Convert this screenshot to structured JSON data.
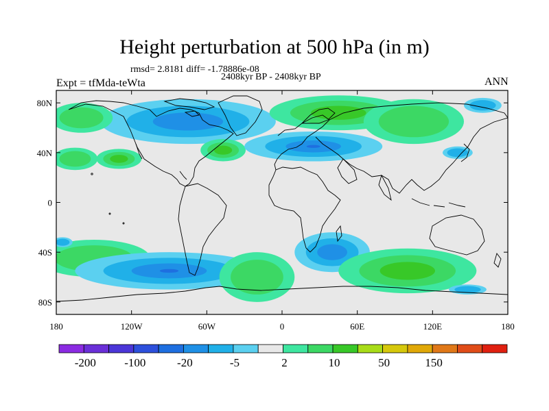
{
  "title": "Height perturbation at 500 hPa (in m)",
  "stats_line": "rmsd= 2.8181 diff= -1.78886e-08",
  "period_line": "2408kyr BP - 2408kyr BP",
  "expt_label": "Expt = tfMda-teWta",
  "season_label": "ANN",
  "chart_data": {
    "type": "contour_map",
    "title": "Height perturbation at 500 hPa (in m)",
    "field": "500 hPa height perturbation",
    "units": "m",
    "x_ticks": [
      "180",
      "120W",
      "60W",
      "0",
      "60E",
      "120E",
      "180"
    ],
    "x_tick_values": [
      -180,
      -120,
      -60,
      0,
      60,
      120,
      180
    ],
    "y_ticks": [
      "80N",
      "40N",
      "0",
      "40S",
      "80S"
    ],
    "y_tick_values": [
      80,
      40,
      0,
      -40,
      -80
    ],
    "xlim": [
      -180,
      180
    ],
    "ylim": [
      -90,
      90
    ],
    "colorbar": {
      "colors": [
        "#8b2be2",
        "#6a2fd8",
        "#4b36d8",
        "#2d50dc",
        "#1e6fe0",
        "#1f90e6",
        "#20b0e8",
        "#5bd0f0",
        "#e8e8e8",
        "#3ee6a0",
        "#3cd864",
        "#38c828",
        "#a8dc18",
        "#d6c80c",
        "#e0a808",
        "#e07818",
        "#e04c18",
        "#e02010"
      ],
      "labels": [
        "-200",
        "-100",
        "-20",
        "-5",
        "2",
        "10",
        "50",
        "150"
      ],
      "label_boundary_index": [
        1,
        3,
        5,
        7,
        9,
        11,
        13,
        15
      ]
    },
    "features": [
      {
        "lon": -75,
        "lat": 65,
        "sign": "negative",
        "level": 2,
        "rx": 70,
        "ry": 18
      },
      {
        "lon": 45,
        "lat": 72,
        "sign": "positive",
        "level": 2,
        "rx": 55,
        "ry": 14
      },
      {
        "lon": -160,
        "lat": 68,
        "sign": "positive",
        "level": 1,
        "rx": 25,
        "ry": 12
      },
      {
        "lon": -165,
        "lat": 35,
        "sign": "positive",
        "level": 1,
        "rx": 18,
        "ry": 9
      },
      {
        "lon": -130,
        "lat": 35,
        "sign": "positive",
        "level": 2,
        "rx": 18,
        "ry": 8
      },
      {
        "lon": -47,
        "lat": 42,
        "sign": "positive",
        "level": 2,
        "rx": 18,
        "ry": 9
      },
      {
        "lon": 25,
        "lat": 45,
        "sign": "negative",
        "level": 3,
        "rx": 55,
        "ry": 12
      },
      {
        "lon": 105,
        "lat": 65,
        "sign": "positive",
        "level": 1,
        "rx": 40,
        "ry": 18
      },
      {
        "lon": 160,
        "lat": 78,
        "sign": "negative",
        "level": 1,
        "rx": 15,
        "ry": 6
      },
      {
        "lon": 140,
        "lat": 40,
        "sign": "negative",
        "level": 1,
        "rx": 12,
        "ry": 5
      },
      {
        "lon": -150,
        "lat": -45,
        "sign": "positive",
        "level": 1,
        "rx": 45,
        "ry": 15
      },
      {
        "lon": -90,
        "lat": -55,
        "sign": "negative",
        "level": 3,
        "rx": 75,
        "ry": 15
      },
      {
        "lon": -20,
        "lat": -60,
        "sign": "positive",
        "level": 1,
        "rx": 30,
        "ry": 20
      },
      {
        "lon": 40,
        "lat": -40,
        "sign": "negative",
        "level": 2,
        "rx": 30,
        "ry": 16
      },
      {
        "lon": 100,
        "lat": -55,
        "sign": "positive",
        "level": 2,
        "rx": 55,
        "ry": 18
      },
      {
        "lon": -175,
        "lat": -32,
        "sign": "negative",
        "level": 1,
        "rx": 8,
        "ry": 4
      },
      {
        "lon": 148,
        "lat": -70,
        "sign": "negative",
        "level": 1,
        "rx": 15,
        "ry": 4
      }
    ]
  }
}
